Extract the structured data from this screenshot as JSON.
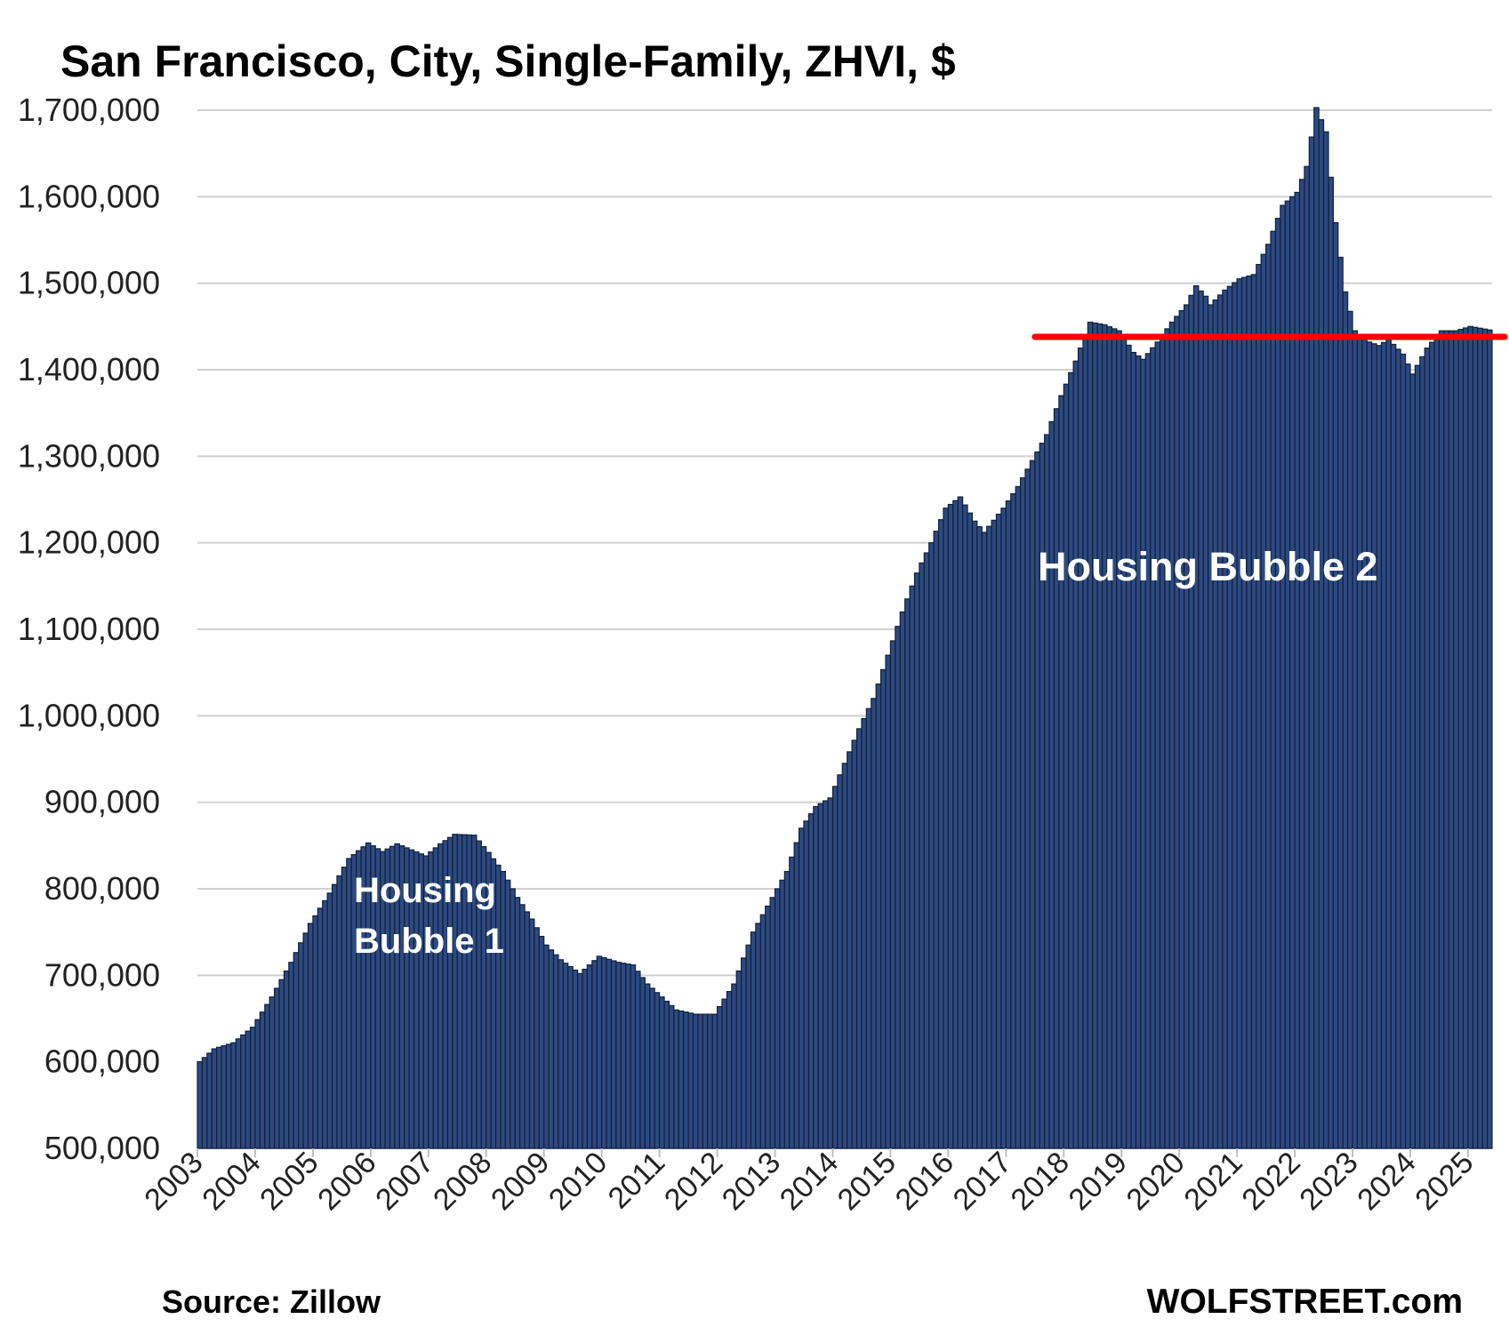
{
  "chart_data": {
    "type": "bar",
    "title": "San Francisco, City, Single-Family, ZHVI, $",
    "xlabel": "",
    "ylabel": "",
    "ylim": [
      500000,
      1700000
    ],
    "yticks": [
      500000,
      600000,
      700000,
      800000,
      900000,
      1000000,
      1100000,
      1200000,
      1300000,
      1400000,
      1500000,
      1600000,
      1700000
    ],
    "ytick_labels": [
      "500,000",
      "600,000",
      "700,000",
      "800,000",
      "900,000",
      "1,000,000",
      "1,100,000",
      "1,200,000",
      "1,300,000",
      "1,400,000",
      "1,500,000",
      "1,600,000",
      "1,700,000"
    ],
    "year_labels": [
      "2003",
      "2004",
      "2005",
      "2006",
      "2007",
      "2008",
      "2009",
      "2010",
      "2011",
      "2012",
      "2013",
      "2014",
      "2015",
      "2016",
      "2017",
      "2018",
      "2019",
      "2020",
      "2021",
      "2022",
      "2023",
      "2024",
      "2025"
    ],
    "frequency": "monthly",
    "start": "2003-01",
    "end": "2025-05",
    "bar_color": "#2d4a80",
    "bar_edge_color": "#0f1f3d",
    "grid": true,
    "anchors": [
      [
        "2003-01",
        600000
      ],
      [
        "2003-04",
        615000
      ],
      [
        "2003-08",
        622000
      ],
      [
        "2003-12",
        640000
      ],
      [
        "2004-04",
        675000
      ],
      [
        "2004-08",
        715000
      ],
      [
        "2004-12",
        760000
      ],
      [
        "2005-04",
        795000
      ],
      [
        "2005-08",
        835000
      ],
      [
        "2005-12",
        853000
      ],
      [
        "2006-03",
        843000
      ],
      [
        "2006-06",
        852000
      ],
      [
        "2006-09",
        845000
      ],
      [
        "2006-12",
        838000
      ],
      [
        "2007-03",
        852000
      ],
      [
        "2007-06",
        863000
      ],
      [
        "2007-10",
        862000
      ],
      [
        "2008-01",
        842000
      ],
      [
        "2008-04",
        820000
      ],
      [
        "2008-07",
        790000
      ],
      [
        "2008-10",
        765000
      ],
      [
        "2009-01",
        735000
      ],
      [
        "2009-04",
        718000
      ],
      [
        "2009-08",
        702000
      ],
      [
        "2009-12",
        722000
      ],
      [
        "2010-04",
        715000
      ],
      [
        "2010-07",
        712000
      ],
      [
        "2010-10",
        690000
      ],
      [
        "2011-01",
        675000
      ],
      [
        "2011-04",
        660000
      ],
      [
        "2011-08",
        655000
      ],
      [
        "2011-12",
        655000
      ],
      [
        "2012-04",
        690000
      ],
      [
        "2012-08",
        750000
      ],
      [
        "2012-12",
        790000
      ],
      [
        "2013-03",
        820000
      ],
      [
        "2013-06",
        870000
      ],
      [
        "2013-09",
        895000
      ],
      [
        "2013-12",
        905000
      ],
      [
        "2014-03",
        945000
      ],
      [
        "2014-06",
        985000
      ],
      [
        "2014-09",
        1020000
      ],
      [
        "2014-12",
        1070000
      ],
      [
        "2015-03",
        1120000
      ],
      [
        "2015-06",
        1165000
      ],
      [
        "2015-09",
        1200000
      ],
      [
        "2015-12",
        1240000
      ],
      [
        "2016-03",
        1253000
      ],
      [
        "2016-06",
        1225000
      ],
      [
        "2016-08",
        1212000
      ],
      [
        "2016-12",
        1240000
      ],
      [
        "2017-03",
        1265000
      ],
      [
        "2017-06",
        1295000
      ],
      [
        "2017-09",
        1325000
      ],
      [
        "2017-12",
        1370000
      ],
      [
        "2018-03",
        1410000
      ],
      [
        "2018-06",
        1455000
      ],
      [
        "2018-09",
        1452000
      ],
      [
        "2018-12",
        1445000
      ],
      [
        "2019-03",
        1420000
      ],
      [
        "2019-05",
        1412000
      ],
      [
        "2019-08",
        1432000
      ],
      [
        "2019-11",
        1455000
      ],
      [
        "2020-02",
        1475000
      ],
      [
        "2020-04",
        1497000
      ],
      [
        "2020-06",
        1485000
      ],
      [
        "2020-07",
        1475000
      ],
      [
        "2020-10",
        1492000
      ],
      [
        "2021-01",
        1505000
      ],
      [
        "2021-04",
        1510000
      ],
      [
        "2021-07",
        1545000
      ],
      [
        "2021-10",
        1590000
      ],
      [
        "2022-01",
        1605000
      ],
      [
        "2022-03",
        1635000
      ],
      [
        "2022-05",
        1703000
      ],
      [
        "2022-07",
        1675000
      ],
      [
        "2022-09",
        1570000
      ],
      [
        "2022-11",
        1490000
      ],
      [
        "2023-01",
        1445000
      ],
      [
        "2023-04",
        1432000
      ],
      [
        "2023-06",
        1428000
      ],
      [
        "2023-08",
        1435000
      ],
      [
        "2023-11",
        1418000
      ],
      [
        "2024-01",
        1395000
      ],
      [
        "2024-04",
        1425000
      ],
      [
        "2024-07",
        1445000
      ],
      [
        "2024-10",
        1445000
      ],
      [
        "2025-01",
        1450000
      ],
      [
        "2025-05",
        1446000
      ]
    ],
    "annotations": [
      {
        "text_lines": [
          "Housing",
          "Bubble 1"
        ]
      },
      {
        "text_lines": [
          "Housing Bubble 2"
        ]
      }
    ],
    "reference_line": {
      "value": 1438000,
      "from": "2017-07",
      "to": "2025-05",
      "color": "#ff0000"
    }
  },
  "footer": {
    "source": "Source: Zillow",
    "brand": "WOLFSTREET.com"
  }
}
